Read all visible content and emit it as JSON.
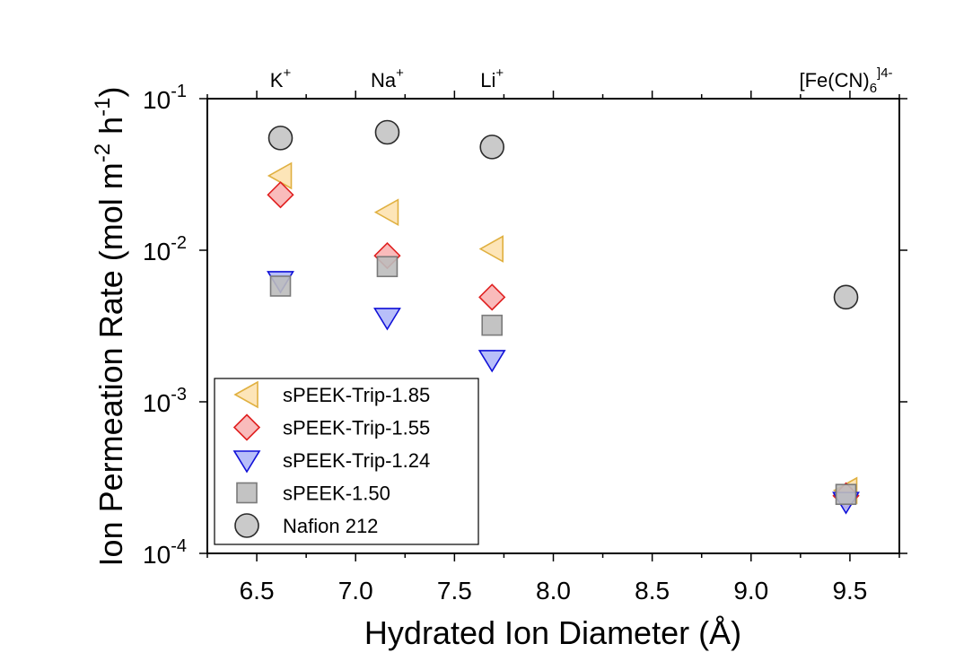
{
  "chart_data": {
    "type": "scatter",
    "xlabel": "Hydrated Ion Diameter (Å)",
    "ylabel_parts": [
      "Ion Permeation Rate (mol m",
      "-2",
      " h",
      "-1",
      ")"
    ],
    "xlim": [
      6.25,
      9.75
    ],
    "ylim": [
      0.0001,
      0.1
    ],
    "yscale": "log",
    "x_ticks": [
      6.5,
      7.0,
      7.5,
      8.0,
      8.5,
      9.0,
      9.5
    ],
    "x_tick_labels": [
      "6.5",
      "7.0",
      "7.5",
      "8.0",
      "8.5",
      "9.0",
      "9.5"
    ],
    "y_ticks": [
      {
        "value": 0.1,
        "base": "10",
        "exp": "-1"
      },
      {
        "value": 0.01,
        "base": "10",
        "exp": "-2"
      },
      {
        "value": 0.001,
        "base": "10",
        "exp": "-3"
      },
      {
        "value": 0.0001,
        "base": "10",
        "exp": "-4"
      }
    ],
    "ion_labels": [
      {
        "x": 6.62,
        "base": "K",
        "sub": "",
        "sup": "+"
      },
      {
        "x": 7.16,
        "base": "Na",
        "sub": "",
        "sup": "+"
      },
      {
        "x": 7.69,
        "base": "Li",
        "sub": "",
        "sup": "+"
      },
      {
        "x": 9.48,
        "base": "[Fe(CN)",
        "sub": "6",
        "sup": "]4-"
      }
    ],
    "legend_position": "bottom-left",
    "series": [
      {
        "name": "sPEEK-Trip-1.85",
        "marker": "triangle-left",
        "fill": "#fde2b0",
        "stroke": "#e0b040",
        "points": [
          [
            6.62,
            0.031
          ],
          [
            7.16,
            0.0178
          ],
          [
            7.69,
            0.0102
          ],
          [
            9.48,
            0.00026
          ]
        ]
      },
      {
        "name": "sPEEK-Trip-1.55",
        "marker": "diamond",
        "fill": "#f8b4b4",
        "stroke": "#e02020",
        "points": [
          [
            6.62,
            0.0232
          ],
          [
            7.16,
            0.0092
          ],
          [
            7.69,
            0.0049
          ],
          [
            9.48,
            0.00024
          ]
        ]
      },
      {
        "name": "sPEEK-Trip-1.24",
        "marker": "triangle-down",
        "fill": "#b0b8f8",
        "stroke": "#1010d8",
        "points": [
          [
            6.62,
            0.0063
          ],
          [
            7.16,
            0.0036
          ],
          [
            7.69,
            0.0019
          ],
          [
            9.48,
            0.00022
          ]
        ]
      },
      {
        "name": "sPEEK-1.50",
        "marker": "square",
        "fill": "#bdbdbd",
        "stroke": "#7a7a7a",
        "points": [
          [
            6.62,
            0.0058
          ],
          [
            7.16,
            0.0078
          ],
          [
            7.69,
            0.0032
          ],
          [
            9.48,
            0.000245
          ]
        ]
      },
      {
        "name": "Nafion 212",
        "marker": "circle",
        "fill": "#c4c4c4",
        "stroke": "#2a2a2a",
        "points": [
          [
            6.62,
            0.055
          ],
          [
            7.16,
            0.06
          ],
          [
            7.69,
            0.048
          ],
          [
            9.48,
            0.0049
          ]
        ]
      }
    ]
  }
}
